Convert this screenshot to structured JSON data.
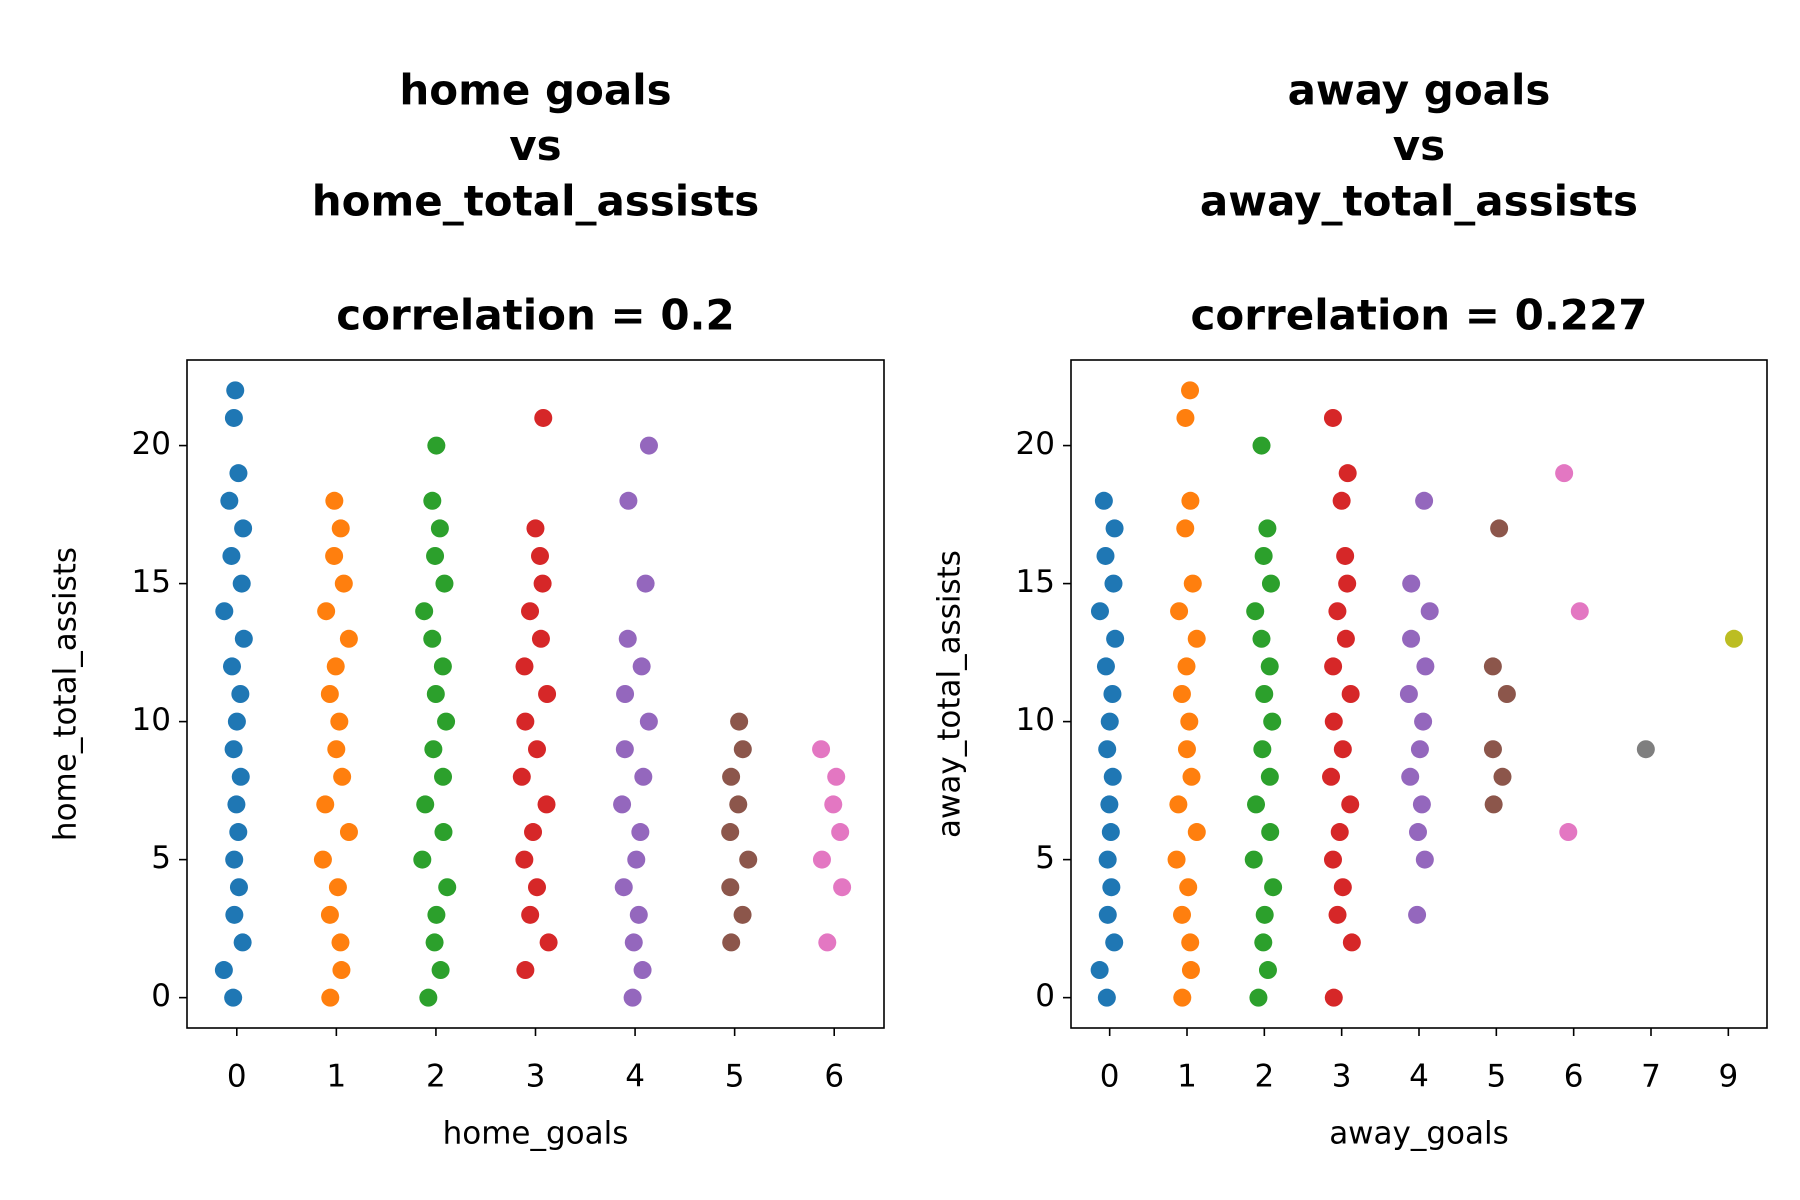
{
  "chart_data": [
    {
      "type": "strip",
      "title": [
        "home goals",
        "vs",
        "home_total_assists"
      ],
      "subtitle": "correlation = 0.2",
      "x_label": "home_goals",
      "y_label": "home_total_assists",
      "categories": [
        "0",
        "1",
        "2",
        "3",
        "4",
        "5",
        "6"
      ],
      "colors": [
        "#1f77b4",
        "#ff7f0e",
        "#2ca02c",
        "#d62728",
        "#9467bd",
        "#8c564b",
        "#e377c2"
      ],
      "values": [
        [
          0,
          1,
          2,
          3,
          4,
          5,
          6,
          7,
          8,
          9,
          10,
          11,
          12,
          13,
          14,
          15,
          16,
          17,
          18,
          19,
          21,
          22
        ],
        [
          0,
          1,
          2,
          3,
          4,
          5,
          6,
          7,
          8,
          9,
          10,
          11,
          12,
          13,
          14,
          15,
          16,
          17,
          18
        ],
        [
          0,
          1,
          2,
          3,
          4,
          5,
          6,
          7,
          8,
          9,
          10,
          11,
          12,
          13,
          14,
          15,
          16,
          17,
          18,
          20
        ],
        [
          1,
          2,
          3,
          4,
          5,
          6,
          7,
          8,
          9,
          10,
          11,
          12,
          13,
          14,
          15,
          16,
          17,
          21
        ],
        [
          0,
          1,
          2,
          3,
          4,
          5,
          6,
          7,
          8,
          9,
          10,
          11,
          12,
          13,
          15,
          18,
          20
        ],
        [
          2,
          3,
          4,
          5,
          6,
          7,
          8,
          9,
          10
        ],
        [
          2,
          4,
          5,
          6,
          7,
          8,
          9
        ]
      ],
      "ylim": [
        -1.1,
        23.1
      ],
      "yticks": [
        0,
        5,
        10,
        15,
        20
      ],
      "grid": false
    },
    {
      "type": "strip",
      "title": [
        "away goals",
        "vs",
        "away_total_assists"
      ],
      "subtitle": "correlation = 0.227",
      "x_label": "away_goals",
      "y_label": "away_total_assists",
      "categories": [
        "0",
        "1",
        "2",
        "3",
        "4",
        "5",
        "6",
        "7",
        "9"
      ],
      "colors": [
        "#1f77b4",
        "#ff7f0e",
        "#2ca02c",
        "#d62728",
        "#9467bd",
        "#8c564b",
        "#e377c2",
        "#7f7f7f",
        "#bcbd22"
      ],
      "values": [
        [
          0,
          1,
          2,
          3,
          4,
          5,
          6,
          7,
          8,
          9,
          10,
          11,
          12,
          13,
          14,
          15,
          16,
          17,
          18
        ],
        [
          0,
          1,
          2,
          3,
          4,
          5,
          6,
          7,
          8,
          9,
          10,
          11,
          12,
          13,
          14,
          15,
          17,
          18,
          21,
          22
        ],
        [
          0,
          1,
          2,
          3,
          4,
          5,
          6,
          7,
          8,
          9,
          10,
          11,
          12,
          13,
          14,
          15,
          16,
          17,
          20
        ],
        [
          0,
          2,
          3,
          4,
          5,
          6,
          7,
          8,
          9,
          10,
          11,
          12,
          13,
          14,
          15,
          16,
          18,
          19,
          21
        ],
        [
          3,
          5,
          6,
          7,
          8,
          9,
          10,
          11,
          12,
          13,
          14,
          15,
          18
        ],
        [
          7,
          8,
          9,
          11,
          12,
          17
        ],
        [
          6,
          14,
          19
        ],
        [
          9
        ],
        [
          13
        ]
      ],
      "ylim": [
        -1.1,
        23.1
      ],
      "yticks": [
        0,
        5,
        10,
        15,
        20
      ],
      "grid": false
    }
  ]
}
